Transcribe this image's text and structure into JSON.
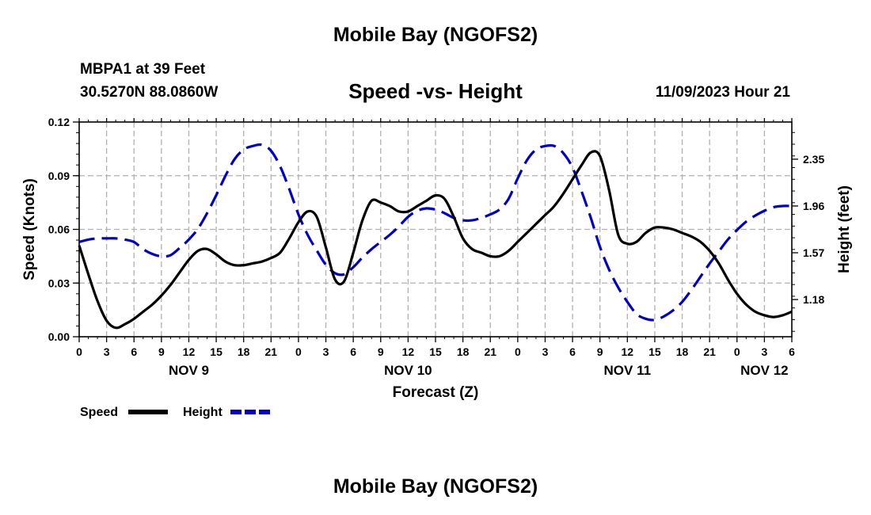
{
  "header": {
    "title": "Mobile Bay (NGOFS2)",
    "station_name": "MBPA1 at 39 Feet",
    "station_coords": "30.5270N  88.0860W",
    "subtitle": "Speed -vs- Height",
    "datetime": "11/09/2023 Hour 21"
  },
  "footer": {
    "title": "Mobile Bay (NGOFS2)"
  },
  "colors": {
    "speed": "#000000",
    "height": "#0000cc",
    "grid": "#b0b0b0"
  },
  "chart_data": {
    "type": "line",
    "title": "Speed -vs- Height",
    "xlabel": "Forecast (Z)",
    "ylabel": "Speed (Knots)",
    "y2label": "Height (feet)",
    "xlim": [
      0,
      78
    ],
    "ylim": [
      0,
      0.12
    ],
    "y2lim": [
      0.87,
      2.66
    ],
    "x_ticks": [
      0,
      3,
      6,
      9,
      12,
      15,
      18,
      21,
      24,
      27,
      30,
      33,
      36,
      39,
      42,
      45,
      48,
      51,
      54,
      57,
      60,
      63,
      66,
      69,
      72,
      75,
      78
    ],
    "x_tick_labels": [
      "0",
      "3",
      "6",
      "9",
      "12",
      "15",
      "18",
      "21",
      "0",
      "3",
      "6",
      "9",
      "12",
      "15",
      "18",
      "21",
      "0",
      "3",
      "6",
      "9",
      "12",
      "15",
      "18",
      "21",
      "0",
      "3",
      "6"
    ],
    "y_ticks": [
      0,
      0.03,
      0.06,
      0.09,
      0.12
    ],
    "y_tick_labels": [
      "0.00",
      "0.03",
      "0.06",
      "0.09",
      "0.12"
    ],
    "y2_ticks": [
      1.18,
      1.57,
      1.96,
      2.35
    ],
    "y2_tick_labels": [
      "1.18",
      "1.57",
      "1.96",
      "2.35"
    ],
    "date_labels": [
      {
        "x": 12,
        "label": "NOV 9"
      },
      {
        "x": 36,
        "label": "NOV 10"
      },
      {
        "x": 60,
        "label": "NOV 11"
      },
      {
        "x": 75,
        "label": "NOV 12"
      }
    ],
    "grid": true,
    "legend": "bottom-left",
    "series": [
      {
        "name": "Speed",
        "axis": "left",
        "style": "solid",
        "x": [
          0,
          1,
          2,
          3,
          4,
          5,
          6,
          7,
          8,
          9,
          10,
          11,
          12,
          13,
          14,
          15,
          16,
          17,
          18,
          19,
          20,
          21,
          22,
          23,
          24,
          25,
          26,
          27,
          28,
          29,
          30,
          31,
          32,
          33,
          34,
          35,
          36,
          37,
          38,
          39,
          40,
          41,
          42,
          43,
          44,
          45,
          46,
          47,
          48,
          49,
          50,
          51,
          52,
          53,
          54,
          55,
          56,
          57,
          58,
          59,
          60,
          61,
          62,
          63,
          64,
          65,
          66,
          67,
          68,
          69,
          70,
          71,
          72,
          73,
          74,
          75,
          76,
          77,
          78
        ],
        "values": [
          0.051,
          0.035,
          0.02,
          0.009,
          0.005,
          0.007,
          0.01,
          0.014,
          0.018,
          0.023,
          0.029,
          0.036,
          0.043,
          0.048,
          0.049,
          0.046,
          0.042,
          0.04,
          0.04,
          0.041,
          0.042,
          0.044,
          0.047,
          0.055,
          0.064,
          0.07,
          0.067,
          0.05,
          0.032,
          0.031,
          0.047,
          0.065,
          0.076,
          0.075,
          0.073,
          0.07,
          0.07,
          0.073,
          0.076,
          0.079,
          0.077,
          0.067,
          0.055,
          0.049,
          0.047,
          0.045,
          0.045,
          0.048,
          0.053,
          0.058,
          0.063,
          0.068,
          0.073,
          0.08,
          0.088,
          0.096,
          0.103,
          0.101,
          0.082,
          0.057,
          0.052,
          0.053,
          0.058,
          0.061,
          0.061,
          0.06,
          0.058,
          0.056,
          0.053,
          0.048,
          0.041,
          0.032,
          0.024,
          0.018,
          0.014,
          0.012,
          0.011,
          0.012,
          0.014
        ]
      },
      {
        "name": "Height",
        "axis": "right",
        "style": "dashed",
        "x": [
          0,
          1,
          2,
          3,
          4,
          5,
          6,
          7,
          8,
          9,
          10,
          11,
          12,
          13,
          14,
          15,
          16,
          17,
          18,
          19,
          20,
          21,
          22,
          23,
          24,
          25,
          26,
          27,
          28,
          29,
          30,
          31,
          32,
          33,
          34,
          35,
          36,
          37,
          38,
          39,
          40,
          41,
          42,
          43,
          44,
          45,
          46,
          47,
          48,
          49,
          50,
          51,
          52,
          53,
          54,
          55,
          56,
          57,
          58,
          59,
          60,
          61,
          62,
          63,
          64,
          65,
          66,
          67,
          68,
          69,
          70,
          71,
          72,
          73,
          74,
          75,
          76,
          77,
          78
        ],
        "values": [
          1.66,
          1.68,
          1.69,
          1.69,
          1.69,
          1.68,
          1.66,
          1.6,
          1.56,
          1.54,
          1.55,
          1.61,
          1.68,
          1.77,
          1.9,
          2.05,
          2.21,
          2.35,
          2.43,
          2.46,
          2.47,
          2.42,
          2.29,
          2.1,
          1.89,
          1.72,
          1.59,
          1.47,
          1.4,
          1.39,
          1.45,
          1.53,
          1.6,
          1.66,
          1.72,
          1.79,
          1.87,
          1.92,
          1.94,
          1.93,
          1.9,
          1.86,
          1.84,
          1.84,
          1.86,
          1.89,
          1.93,
          2.02,
          2.19,
          2.34,
          2.43,
          2.46,
          2.46,
          2.4,
          2.28,
          2.08,
          1.86,
          1.62,
          1.43,
          1.28,
          1.16,
          1.06,
          1.02,
          1.01,
          1.04,
          1.09,
          1.16,
          1.26,
          1.37,
          1.48,
          1.58,
          1.68,
          1.76,
          1.83,
          1.88,
          1.92,
          1.95,
          1.96,
          1.96
        ]
      }
    ]
  }
}
